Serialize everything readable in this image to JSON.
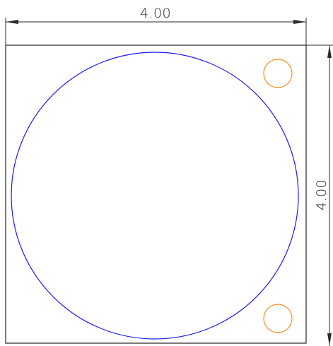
{
  "dimensions": {
    "width_label": "4.00",
    "height_label": "4.00"
  },
  "colors": {
    "background": "#ffffff",
    "outline": "#333333",
    "dimension": "#2a2a2a",
    "main_circle": "#1a1aff",
    "small_circles": "#ff8c1a"
  }
}
